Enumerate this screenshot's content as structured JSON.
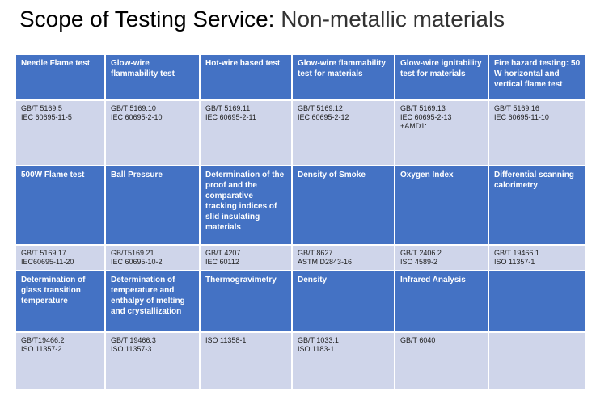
{
  "title": {
    "main": "Scope of Testing Service:",
    "sub": " Non-metallic materials"
  },
  "rows": [
    {
      "type": "head",
      "cells": [
        "Needle Flame test",
        "Glow-wire flammability test",
        "Hot-wire based test",
        "Glow-wire flammability test for materials",
        "Glow-wire ignitability test for materials",
        "Fire hazard testing: 50 W horizontal and vertical flame test"
      ]
    },
    {
      "type": "std",
      "cells": [
        "GB/T 5169.5\nIEC 60695-11-5",
        "GB/T 5169.10\nIEC 60695-2-10",
        "GB/T 5169.11\nIEC 60695-2-11",
        "GB/T 5169.12\nIEC 60695-2-12",
        "GB/T 5169.13\nIEC 60695-2-13\n+AMD1:",
        "GB/T 5169.16\nIEC 60695-11-10"
      ]
    },
    {
      "type": "head",
      "cells": [
        "500W Flame test",
        "Ball Pressure",
        "Determination of the proof and the comparative tracking indices of slid insulating materials",
        "Density of Smoke",
        "Oxygen Index",
        "Differential scanning calorimetry"
      ]
    },
    {
      "type": "std",
      "cells": [
        "GB/T 5169.17\nIEC60695-11-20",
        "GB/T5169.21\nIEC 60695-10-2",
        "GB/T 4207\nIEC 60112",
        "GB/T 8627\nASTM D2843-16",
        "GB/T 2406.2\nISO 4589-2",
        "GB/T 19466.1\nISO 11357-1"
      ]
    },
    {
      "type": "head",
      "cells": [
        "Determination of glass transition temperature",
        "Determination of temperature and enthalpy of melting and crystallization",
        "Thermogravimetry",
        "Density",
        "Infrared Analysis",
        ""
      ]
    },
    {
      "type": "std",
      "cells": [
        "GB/T19466.2\nISO 11357-2",
        "GB/T 19466.3\nISO 11357-3",
        "ISO 11358-1",
        "GB/T 1033.1\nISO 1183-1",
        "GB/T 6040",
        ""
      ]
    }
  ]
}
